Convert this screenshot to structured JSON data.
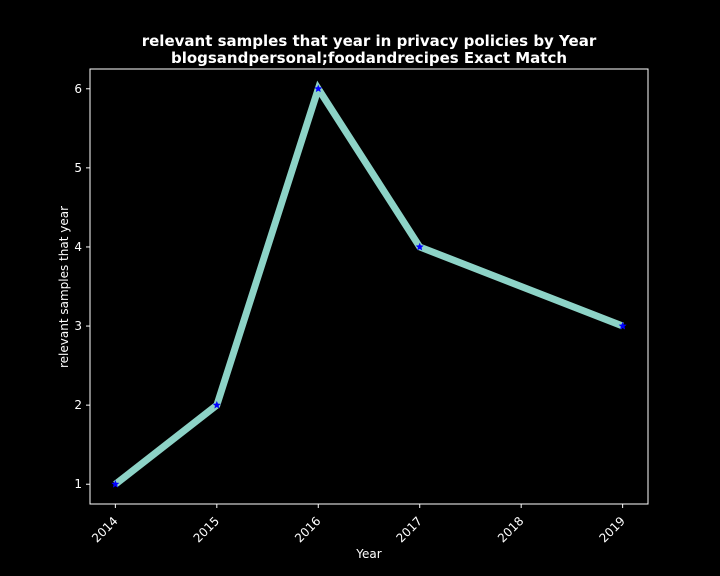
{
  "chart_data": {
    "type": "line",
    "title_lines": [
      "relevant samples that year in privacy policies by Year",
      "blogsandpersonal;foodandrecipes Exact Match"
    ],
    "xlabel": "Year",
    "ylabel": "relevant samples that year",
    "x": [
      2014,
      2015,
      2016,
      2017,
      2019
    ],
    "x_ticks": [
      "2014",
      "2015",
      "2016",
      "2017",
      "2018",
      "2019"
    ],
    "y_ticks": [
      "1",
      "2",
      "3",
      "4",
      "5",
      "6"
    ],
    "values": [
      1,
      2,
      6,
      4,
      3
    ],
    "xlim": [
      2013.75,
      2019.25
    ],
    "ylim": [
      0.75,
      6.25
    ],
    "grid": false,
    "line_color": "#8dd3c7",
    "marker_color": "#0000ff",
    "background_color": "#000000"
  }
}
